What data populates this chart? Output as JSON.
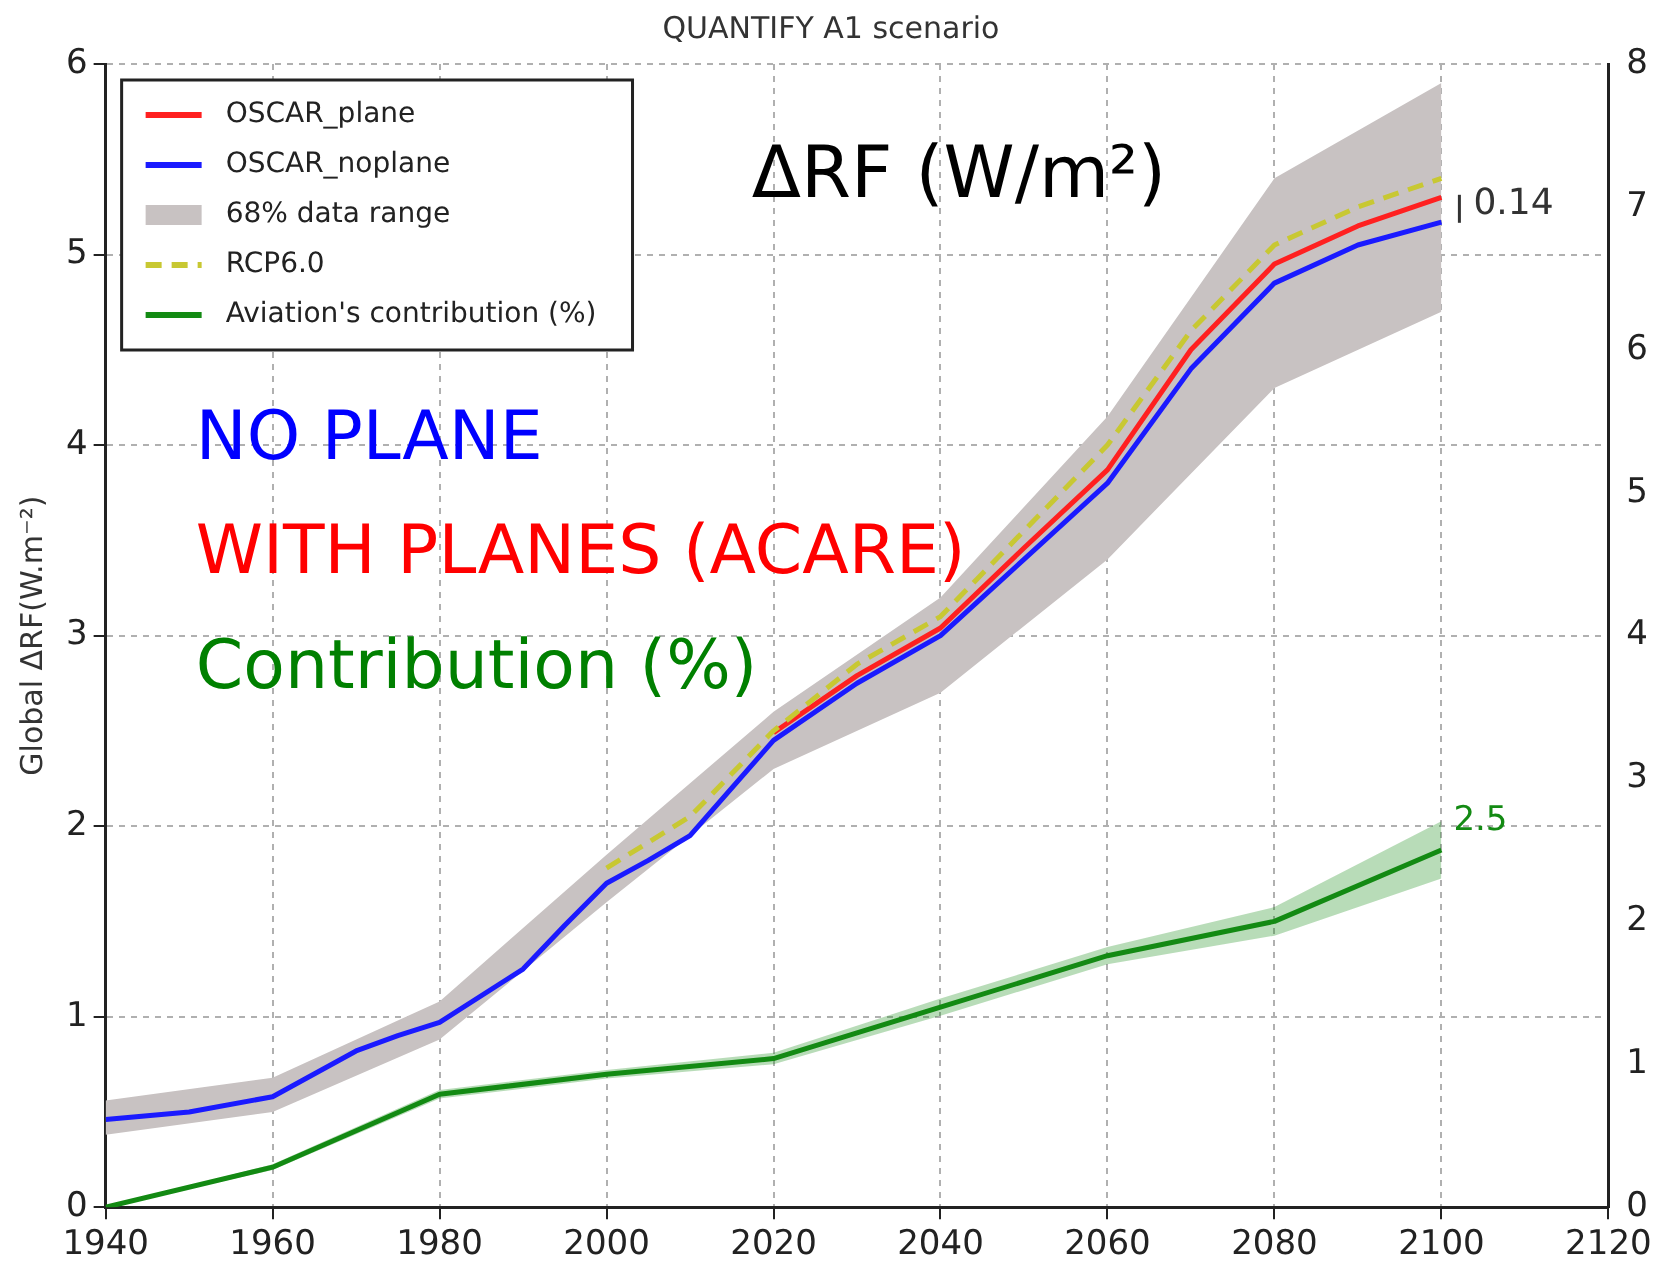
{
  "chart_data": {
    "type": "line",
    "title": "QUANTIFY A1 scenario",
    "ylabel": "Global ΔRF(W.m⁻²)",
    "xlim": [
      1940,
      2120
    ],
    "xticks": [
      1940,
      1960,
      1980,
      2000,
      2020,
      2040,
      2060,
      2080,
      2100,
      2120
    ],
    "ylim": [
      0,
      6
    ],
    "yticks": [
      0,
      1,
      2,
      3,
      4,
      5,
      6
    ],
    "y2lim": [
      0,
      8
    ],
    "y2ticks": [
      0,
      1,
      2,
      3,
      4,
      5,
      6,
      7,
      8
    ],
    "grid": true,
    "legend": "top left",
    "marker": "none",
    "annotations": [
      "ΔRF (W/m²)",
      "NO PLANE",
      "WITH PLANES (ACARE)",
      "Contribution (%)",
      {
        "text": "0.14",
        "x": 2100,
        "y": 5.24
      }
    ],
    "series": [
      {
        "name": "OSCAR_plane",
        "color": "#ff2020",
        "x": [
          2020,
          2030,
          2040,
          2050,
          2060,
          2070,
          2080,
          2090,
          2100
        ],
        "values": [
          2.49,
          2.79,
          3.04,
          3.46,
          3.87,
          4.5,
          4.95,
          5.15,
          5.3
        ]
      },
      {
        "name": "OSCAR_noplane",
        "color": "#1a1aff",
        "x": [
          1940,
          1950,
          1960,
          1970,
          1975,
          1980,
          1990,
          1995,
          2000,
          2005,
          2010,
          2020,
          2030,
          2040,
          2050,
          2060,
          2070,
          2080,
          2090,
          2100
        ],
        "values": [
          0.46,
          0.5,
          0.58,
          0.82,
          0.9,
          0.97,
          1.25,
          1.48,
          1.7,
          1.82,
          1.95,
          2.45,
          2.75,
          3.0,
          3.4,
          3.8,
          4.4,
          4.85,
          5.05,
          5.17
        ]
      },
      {
        "name": "68% data range",
        "type": "area",
        "color": "#c8c2c2",
        "x": [
          1940,
          1960,
          1980,
          2000,
          2020,
          2040,
          2060,
          2080,
          2100
        ],
        "values": [
          null,
          null,
          null,
          null,
          null,
          null,
          null,
          null,
          null
        ],
        "lower": [
          0.38,
          0.5,
          0.88,
          1.6,
          2.3,
          2.7,
          3.4,
          4.3,
          4.7
        ],
        "upper": [
          0.56,
          0.68,
          1.08,
          1.85,
          2.6,
          3.2,
          4.15,
          5.4,
          5.9
        ]
      },
      {
        "name": "RCP6.0",
        "color": "#c8c832",
        "line_style": "dashed",
        "x": [
          2000,
          2010,
          2020,
          2030,
          2040,
          2050,
          2060,
          2070,
          2080,
          2090,
          2100
        ],
        "values": [
          1.78,
          2.05,
          2.5,
          2.85,
          3.1,
          3.55,
          4.0,
          4.6,
          5.05,
          5.25,
          5.4
        ]
      },
      {
        "name": "Aviation's contribution (%)",
        "color": "#138a13",
        "axis": "y2",
        "x": [
          1940,
          1960,
          1980,
          2000,
          2020,
          2040,
          2060,
          2080,
          2100
        ],
        "values": [
          0,
          0.28,
          0.79,
          0.93,
          1.04,
          1.4,
          1.76,
          2.0,
          2.5
        ],
        "lower": [
          0,
          0.26,
          0.76,
          0.9,
          1.0,
          1.34,
          1.7,
          1.9,
          2.3
        ],
        "upper": [
          0,
          0.3,
          0.82,
          0.96,
          1.08,
          1.46,
          1.82,
          2.1,
          2.7
        ],
        "value_labels": [
          null,
          null,
          null,
          null,
          null,
          null,
          null,
          null,
          "2.5"
        ]
      }
    ]
  }
}
